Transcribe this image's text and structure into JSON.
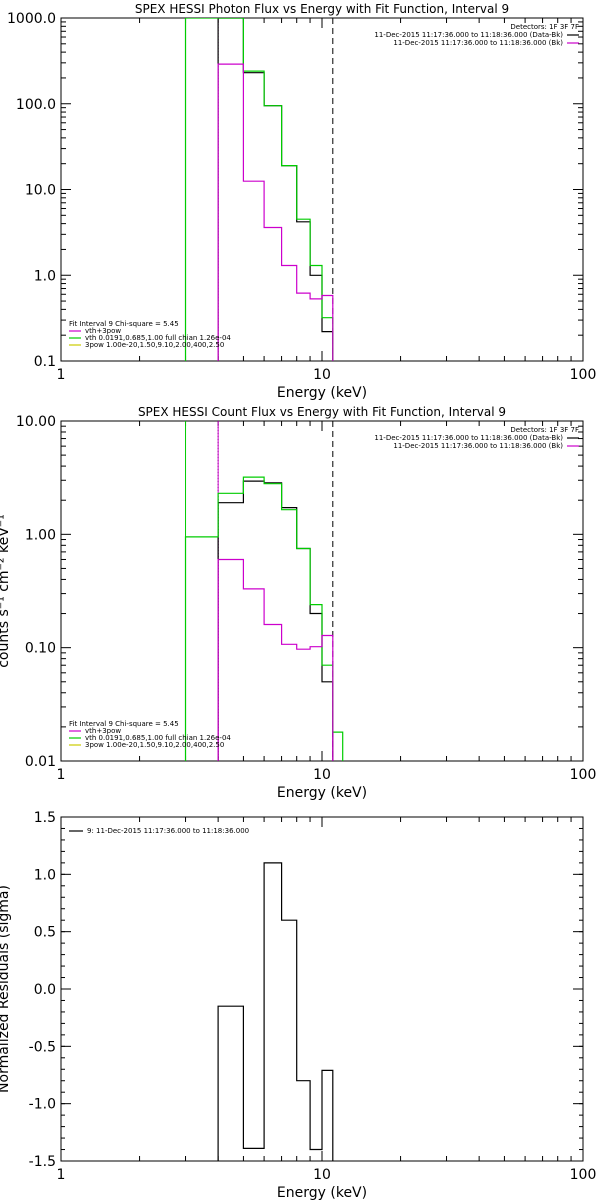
{
  "chart_data": [
    {
      "type": "line",
      "title": "SPEX HESSI Photon Flux vs Energy with Fit Function, Interval 9",
      "xlabel": "Energy (keV)",
      "ylabel": "",
      "xscale": "log",
      "yscale": "log",
      "xlim": [
        1,
        100
      ],
      "ylim": [
        0.1,
        1000
      ],
      "x_ticks": [
        "1",
        "10",
        "100"
      ],
      "y_ticks": [
        "0.1",
        "1.0",
        "10.0",
        "100.0",
        "1000.0"
      ],
      "vlines": [
        {
          "x": 3.0,
          "color": "#00cc00",
          "style": "solid"
        },
        {
          "x": 4.0,
          "color": "#cc00cc",
          "style": "dotted"
        },
        {
          "x": 11.0,
          "color": "#000000",
          "style": "dashed"
        }
      ],
      "legend_top": {
        "position": "top-right",
        "header": "Detectors: 1F 3F 7F",
        "entries": [
          {
            "text": "11-Dec-2015 11:17:36.000 to 11:18:36.000 (Data-Bk)",
            "color": "#000000"
          },
          {
            "text": "11-Dec-2015 11:17:36.000 to 11:18:36.000 (Bk)",
            "color": "#cc00cc"
          }
        ]
      },
      "legend_bottom": {
        "position": "bottom-left",
        "header": "Fit Interval 9   Chi-square = 5.45",
        "entries": [
          {
            "text": "vth+3pow",
            "color": "#cc00cc"
          },
          {
            "text": "vth 0.0191,0.685,1.00  full chian 1.26e-04",
            "color": "#00cc00"
          },
          {
            "text": "3pow 1.00e-20,1.50,9.10,2.00,400,2.50",
            "color": "#cccc00"
          }
        ]
      },
      "series": [
        {
          "color": "#000000",
          "edges": [
            4,
            5,
            6,
            7,
            8,
            9,
            10,
            11
          ],
          "values": [
            1000,
            230,
            95,
            19,
            4.2,
            1.0,
            0.22
          ]
        },
        {
          "color": "#00cc00",
          "edges": [
            3,
            4,
            5,
            6,
            7,
            8,
            9,
            10,
            11
          ],
          "values": [
            1000,
            1000,
            240,
            95,
            19,
            4.5,
            1.3,
            0.32
          ]
        },
        {
          "color": "#cc00cc",
          "edges": [
            4,
            5,
            6,
            7,
            8,
            9,
            10,
            11
          ],
          "values": [
            290,
            12.5,
            3.6,
            1.3,
            0.62,
            0.53,
            0.58
          ]
        }
      ]
    },
    {
      "type": "line",
      "title": "SPEX HESSI Count Flux vs Energy with Fit Function, Interval 9",
      "xlabel": "Energy (keV)",
      "ylabel": "counts s⁻¹ cm⁻² keV⁻¹",
      "xscale": "log",
      "yscale": "log",
      "xlim": [
        1,
        100
      ],
      "ylim": [
        0.01,
        10
      ],
      "x_ticks": [
        "1",
        "10",
        "100"
      ],
      "y_ticks": [
        "0.01",
        "0.10",
        "1.00",
        "10.00"
      ],
      "vlines": [
        {
          "x": 3.0,
          "color": "#00cc00",
          "style": "solid"
        },
        {
          "x": 4.0,
          "color": "#000000",
          "style": "dotted"
        },
        {
          "x": 4.0,
          "color": "#cc00cc",
          "style": "solid"
        },
        {
          "x": 11.0,
          "color": "#000000",
          "style": "dashed"
        }
      ],
      "legend_top": {
        "position": "top-right",
        "header": "Detectors: 1F 3F 7F",
        "entries": [
          {
            "text": "11-Dec-2015 11:17:36.000 to 11:18:36.000 (Data-Bk)",
            "color": "#000000"
          },
          {
            "text": "11-Dec-2015 11:17:36.000 to 11:18:36.000 (Bk)",
            "color": "#cc00cc"
          }
        ]
      },
      "legend_bottom": {
        "position": "bottom-left",
        "header": "Fit Interval 9   Chi-square = 5.45",
        "entries": [
          {
            "text": "vth+3pow",
            "color": "#cc00cc"
          },
          {
            "text": "vth 0.0191,0.685,1.00  full chian 1.26e-04",
            "color": "#00cc00"
          },
          {
            "text": "3pow 1.00e-20,1.50,9.10,2.00,400,2.50",
            "color": "#cccc00"
          }
        ]
      },
      "series": [
        {
          "color": "#000000",
          "edges": [
            4,
            5,
            6,
            7,
            8,
            9,
            10,
            11
          ],
          "values": [
            1.9,
            2.95,
            2.85,
            1.72,
            0.75,
            0.2,
            0.05
          ]
        },
        {
          "color": "#00cc00",
          "edges": [
            3,
            4,
            5,
            6,
            7,
            8,
            9,
            10,
            11,
            12
          ],
          "values": [
            0.95,
            2.3,
            3.2,
            2.8,
            1.65,
            0.75,
            0.24,
            0.07,
            0.018
          ]
        },
        {
          "color": "#cc00cc",
          "edges": [
            4,
            5,
            6,
            7,
            8,
            9,
            10,
            11
          ],
          "values": [
            0.6,
            0.33,
            0.16,
            0.107,
            0.097,
            0.102,
            0.128
          ]
        }
      ]
    },
    {
      "type": "line",
      "title": "",
      "xlabel": "Energy (keV)",
      "ylabel": "Normalized Residuals (sigma)",
      "xscale": "log",
      "yscale": "linear",
      "xlim": [
        1,
        100
      ],
      "ylim": [
        -1.5,
        1.5
      ],
      "x_ticks": [
        "1",
        "10",
        "100"
      ],
      "y_ticks": [
        "-1.5",
        "-1.0",
        "-0.5",
        "0.0",
        "0.5",
        "1.0",
        "1.5"
      ],
      "legend_top": {
        "position": "top-left",
        "entries": [
          {
            "text": "9: 11-Dec-2015 11:17:36.000 to 11:18:36.000",
            "color": "#000000"
          }
        ]
      },
      "series": [
        {
          "color": "#000000",
          "edges": [
            4,
            5,
            6,
            7,
            8,
            9,
            10,
            11
          ],
          "values": [
            -0.15,
            -1.39,
            1.1,
            0.6,
            -0.8,
            -1.4,
            -0.71
          ]
        }
      ]
    }
  ]
}
